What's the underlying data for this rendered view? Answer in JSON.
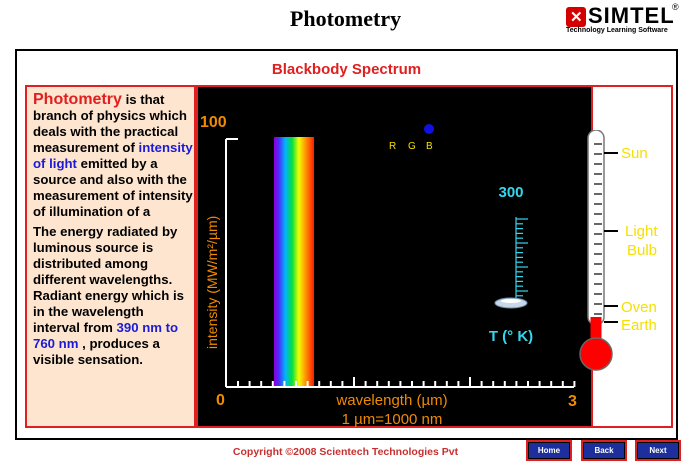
{
  "header": {
    "title": "Photometry",
    "logo": {
      "brand": "SIMTEL",
      "reg_mark": "®",
      "tagline": "Technology Learning Software"
    }
  },
  "panel_title": "Blackbody Spectrum",
  "description": {
    "term": "Photometry",
    "p1_after_term": " is that branch of physics which deals with the practical measurement of ",
    "p1_highlight": "intensity of light",
    "p1_tail": " emitted by a source and also with the measurement of intensity of illumination of a",
    "p2_start": "The energy radiated by luminous source is distributed among different wavelengths. Radiant energy which is in the wavelength interval from ",
    "p2_highlight": "390 nm to 760 nm",
    "p2_end": " , produces a visible sensation."
  },
  "spectrum_chart": {
    "y_max_label": "100",
    "x_min_label": "0",
    "x_max_label": "3",
    "y_axis_label": "intensity (MW/m²/µm)",
    "x_axis_label": "wavelength (µm)",
    "x_unit_note": "1 µm=1000 nm",
    "rgb_labels": [
      "R",
      "G",
      "B"
    ],
    "rgb_dot_color": "#1010e0",
    "temperature_value": "300",
    "temperature_label": "T (° K)"
  },
  "thermometer": {
    "labels": [
      "Sun",
      "Light Bulb",
      "Oven",
      "Earth"
    ],
    "fill_color": "#ff0000",
    "label_color": "#f5e000"
  },
  "footer": {
    "copyright": "Copyright ©2008 Scientech Technologies Pvt",
    "buttons": {
      "home": "Home",
      "back": "Back",
      "next": "Next"
    }
  }
}
